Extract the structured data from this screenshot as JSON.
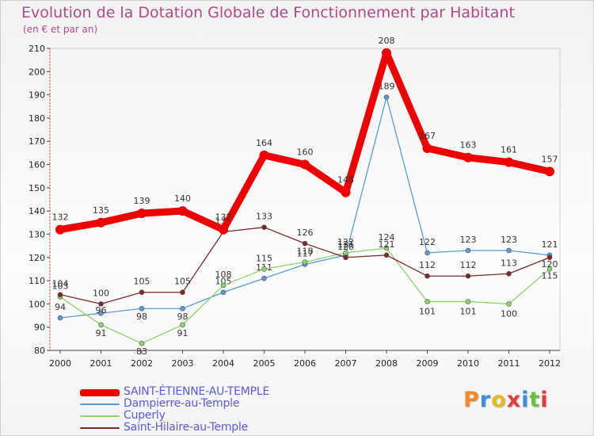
{
  "chart_data": {
    "type": "line",
    "title": "Evolution de la Dotation Globale de Fonctionnement par Habitant",
    "subtitle": "(en € et par an)",
    "categories": [
      "2000",
      "2001",
      "2002",
      "2003",
      "2004",
      "2005",
      "2006",
      "2007",
      "2008",
      "2009",
      "2010",
      "2011",
      "2012"
    ],
    "ylim": [
      80,
      210
    ],
    "yticks": [
      80,
      90,
      100,
      110,
      120,
      130,
      140,
      150,
      160,
      170,
      180,
      190,
      200,
      210
    ],
    "grid": false,
    "legend_position": "bottom-left",
    "series": [
      {
        "name": "SAINT-ÉTIENNE-AU-TEMPLE",
        "color": "#ee0000",
        "values": [
          132,
          135,
          139,
          140,
          132,
          164,
          160,
          148,
          208,
          167,
          163,
          161,
          157
        ]
      },
      {
        "name": "Dampierre-au-Temple",
        "color": "#5b9bd5",
        "values": [
          94,
          96,
          98,
          98,
          105,
          111,
          117,
          121,
          189,
          122,
          123,
          123,
          121
        ]
      },
      {
        "name": "Cuperly",
        "color": "#8fd16a",
        "values": [
          103,
          91,
          83,
          91,
          108,
          115,
          118,
          122,
          124,
          101,
          101,
          100,
          115
        ]
      },
      {
        "name": "Saint-Hilaire-au-Temple",
        "color": "#7a2a2a",
        "values": [
          104,
          100,
          105,
          105,
          131,
          133,
          126,
          120,
          121,
          112,
          112,
          113,
          120
        ]
      }
    ]
  },
  "legend": {
    "items": [
      {
        "label": "SAINT-ÉTIENNE-AU-TEMPLE",
        "color": "#ee0000"
      },
      {
        "label": "Dampierre-au-Temple",
        "color": "#5b9bd5"
      },
      {
        "label": "Cuperly",
        "color": "#8fd16a"
      },
      {
        "label": "Saint-Hilaire-au-Temple",
        "color": "#7a2a2a"
      }
    ]
  },
  "logo": {
    "letters": [
      "P",
      "r",
      "o",
      "x",
      "i",
      "t",
      "i"
    ],
    "colors": [
      "#f08a24",
      "#3a8fd8",
      "#e8b81c",
      "#e23b3b",
      "#3a8fd8",
      "#6cbf3a",
      "#e23b3b"
    ]
  }
}
